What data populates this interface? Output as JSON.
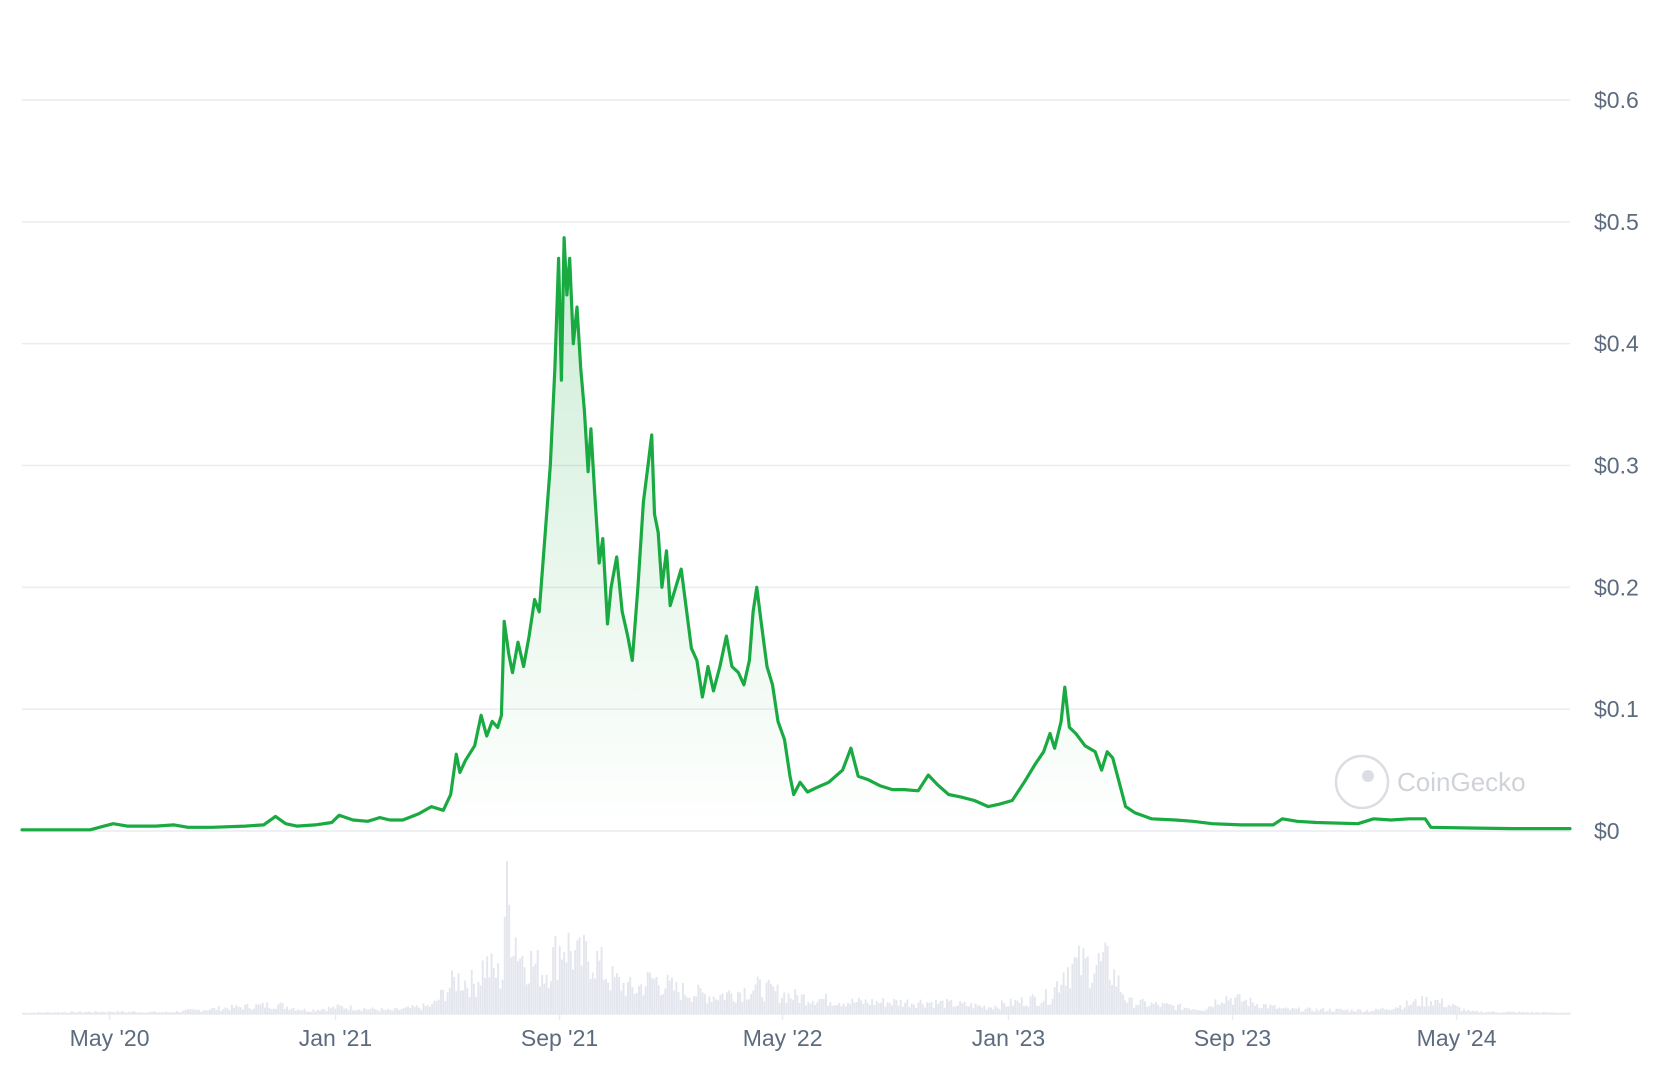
{
  "chart_data": {
    "type": "area",
    "title": "",
    "xlabel": "",
    "ylabel": "",
    "ylim": [
      0,
      0.6
    ],
    "xlim": [
      "2020-01-27",
      "2024-09-01"
    ],
    "y_ticks": [
      "$0.6",
      "$0.5",
      "$0.4",
      "$0.3",
      "$0.2",
      "$0.1",
      "$0"
    ],
    "y_tick_values": [
      0.6,
      0.5,
      0.4,
      0.3,
      0.2,
      0.1,
      0
    ],
    "x_ticks": [
      "May '20",
      "Jan '21",
      "Sep '21",
      "May '22",
      "Jan '23",
      "Sep '23",
      "May '24"
    ],
    "x_tick_dates": [
      "2020-05-01",
      "2021-01-01",
      "2021-09-01",
      "2022-05-01",
      "2023-01-01",
      "2023-09-01",
      "2024-05-01"
    ],
    "grid": true,
    "colors": {
      "line": "#1aaa42",
      "area_top": "#1aaa42",
      "volume": "#e4e6ee",
      "grid": "#e9ecf0",
      "tick_text": "#5c6b7e"
    },
    "series": [
      {
        "values": [
          [
            "2020-01-27",
            0.001
          ],
          [
            "2020-03-15",
            0.001
          ],
          [
            "2020-04-10",
            0.001
          ],
          [
            "2020-04-25",
            0.004
          ],
          [
            "2020-05-05",
            0.006
          ],
          [
            "2020-05-20",
            0.004
          ],
          [
            "2020-06-20",
            0.004
          ],
          [
            "2020-07-10",
            0.005
          ],
          [
            "2020-07-25",
            0.003
          ],
          [
            "2020-08-20",
            0.003
          ],
          [
            "2020-09-25",
            0.004
          ],
          [
            "2020-10-15",
            0.005
          ],
          [
            "2020-10-28",
            0.012
          ],
          [
            "2020-11-08",
            0.006
          ],
          [
            "2020-11-20",
            0.004
          ],
          [
            "2020-12-10",
            0.005
          ],
          [
            "2020-12-28",
            0.007
          ],
          [
            "2021-01-05",
            0.013
          ],
          [
            "2021-01-20",
            0.009
          ],
          [
            "2021-02-05",
            0.008
          ],
          [
            "2021-02-18",
            0.011
          ],
          [
            "2021-03-01",
            0.009
          ],
          [
            "2021-03-15",
            0.009
          ],
          [
            "2021-04-01",
            0.014
          ],
          [
            "2021-04-15",
            0.02
          ],
          [
            "2021-04-28",
            0.017
          ],
          [
            "2021-05-06",
            0.03
          ],
          [
            "2021-05-12",
            0.063
          ],
          [
            "2021-05-16",
            0.048
          ],
          [
            "2021-05-22",
            0.058
          ],
          [
            "2021-06-01",
            0.07
          ],
          [
            "2021-06-08",
            0.095
          ],
          [
            "2021-06-14",
            0.078
          ],
          [
            "2021-06-20",
            0.09
          ],
          [
            "2021-06-26",
            0.085
          ],
          [
            "2021-06-30",
            0.095
          ],
          [
            "2021-07-03",
            0.172
          ],
          [
            "2021-07-08",
            0.145
          ],
          [
            "2021-07-12",
            0.13
          ],
          [
            "2021-07-18",
            0.155
          ],
          [
            "2021-07-24",
            0.135
          ],
          [
            "2021-07-30",
            0.16
          ],
          [
            "2021-08-05",
            0.19
          ],
          [
            "2021-08-10",
            0.18
          ],
          [
            "2021-08-16",
            0.24
          ],
          [
            "2021-08-22",
            0.3
          ],
          [
            "2021-08-27",
            0.38
          ],
          [
            "2021-08-31",
            0.47
          ],
          [
            "2021-09-03",
            0.37
          ],
          [
            "2021-09-06",
            0.487
          ],
          [
            "2021-09-09",
            0.44
          ],
          [
            "2021-09-12",
            0.47
          ],
          [
            "2021-09-16",
            0.4
          ],
          [
            "2021-09-20",
            0.43
          ],
          [
            "2021-09-24",
            0.38
          ],
          [
            "2021-09-28",
            0.345
          ],
          [
            "2021-10-02",
            0.295
          ],
          [
            "2021-10-05",
            0.33
          ],
          [
            "2021-10-09",
            0.28
          ],
          [
            "2021-10-14",
            0.22
          ],
          [
            "2021-10-18",
            0.24
          ],
          [
            "2021-10-23",
            0.17
          ],
          [
            "2021-10-27",
            0.2
          ],
          [
            "2021-11-02",
            0.225
          ],
          [
            "2021-11-08",
            0.18
          ],
          [
            "2021-11-14",
            0.16
          ],
          [
            "2021-11-19",
            0.14
          ],
          [
            "2021-11-25",
            0.2
          ],
          [
            "2021-12-01",
            0.27
          ],
          [
            "2021-12-06",
            0.3
          ],
          [
            "2021-12-10",
            0.325
          ],
          [
            "2021-12-13",
            0.26
          ],
          [
            "2021-12-17",
            0.245
          ],
          [
            "2021-12-21",
            0.2
          ],
          [
            "2021-12-26",
            0.23
          ],
          [
            "2021-12-30",
            0.185
          ],
          [
            "2022-01-05",
            0.2
          ],
          [
            "2022-01-11",
            0.215
          ],
          [
            "2022-01-17",
            0.18
          ],
          [
            "2022-01-22",
            0.15
          ],
          [
            "2022-01-28",
            0.14
          ],
          [
            "2022-02-03",
            0.11
          ],
          [
            "2022-02-09",
            0.135
          ],
          [
            "2022-02-15",
            0.115
          ],
          [
            "2022-02-22",
            0.135
          ],
          [
            "2022-03-01",
            0.16
          ],
          [
            "2022-03-07",
            0.135
          ],
          [
            "2022-03-14",
            0.13
          ],
          [
            "2022-03-20",
            0.12
          ],
          [
            "2022-03-26",
            0.14
          ],
          [
            "2022-03-30",
            0.18
          ],
          [
            "2022-04-03",
            0.2
          ],
          [
            "2022-04-08",
            0.17
          ],
          [
            "2022-04-14",
            0.135
          ],
          [
            "2022-04-20",
            0.12
          ],
          [
            "2022-04-26",
            0.09
          ],
          [
            "2022-05-03",
            0.075
          ],
          [
            "2022-05-09",
            0.045
          ],
          [
            "2022-05-13",
            0.03
          ],
          [
            "2022-05-20",
            0.04
          ],
          [
            "2022-05-28",
            0.032
          ],
          [
            "2022-06-08",
            0.036
          ],
          [
            "2022-06-20",
            0.04
          ],
          [
            "2022-07-05",
            0.05
          ],
          [
            "2022-07-14",
            0.068
          ],
          [
            "2022-07-22",
            0.045
          ],
          [
            "2022-08-02",
            0.042
          ],
          [
            "2022-08-15",
            0.037
          ],
          [
            "2022-08-28",
            0.034
          ],
          [
            "2022-09-10",
            0.034
          ],
          [
            "2022-09-25",
            0.033
          ],
          [
            "2022-10-06",
            0.046
          ],
          [
            "2022-10-16",
            0.038
          ],
          [
            "2022-10-28",
            0.03
          ],
          [
            "2022-11-10",
            0.028
          ],
          [
            "2022-11-25",
            0.025
          ],
          [
            "2022-12-10",
            0.02
          ],
          [
            "2022-12-22",
            0.022
          ],
          [
            "2023-01-05",
            0.025
          ],
          [
            "2023-01-18",
            0.04
          ],
          [
            "2023-01-30",
            0.055
          ],
          [
            "2023-02-08",
            0.065
          ],
          [
            "2023-02-15",
            0.08
          ],
          [
            "2023-02-20",
            0.068
          ],
          [
            "2023-02-27",
            0.09
          ],
          [
            "2023-03-03",
            0.118
          ],
          [
            "2023-03-08",
            0.085
          ],
          [
            "2023-03-15",
            0.08
          ],
          [
            "2023-03-25",
            0.07
          ],
          [
            "2023-04-05",
            0.065
          ],
          [
            "2023-04-12",
            0.05
          ],
          [
            "2023-04-18",
            0.065
          ],
          [
            "2023-04-24",
            0.06
          ],
          [
            "2023-05-01",
            0.04
          ],
          [
            "2023-05-08",
            0.02
          ],
          [
            "2023-05-18",
            0.015
          ],
          [
            "2023-06-05",
            0.01
          ],
          [
            "2023-07-01",
            0.009
          ],
          [
            "2023-07-20",
            0.008
          ],
          [
            "2023-08-10",
            0.006
          ],
          [
            "2023-09-10",
            0.005
          ],
          [
            "2023-10-15",
            0.005
          ],
          [
            "2023-10-25",
            0.01
          ],
          [
            "2023-11-10",
            0.008
          ],
          [
            "2023-12-01",
            0.007
          ],
          [
            "2024-01-15",
            0.006
          ],
          [
            "2024-02-01",
            0.01
          ],
          [
            "2024-02-20",
            0.009
          ],
          [
            "2024-03-10",
            0.01
          ],
          [
            "2024-03-28",
            0.01
          ],
          [
            "2024-04-03",
            0.003
          ],
          [
            "2024-05-15",
            0.0025
          ],
          [
            "2024-07-01",
            0.002
          ],
          [
            "2024-09-01",
            0.002
          ]
        ]
      }
    ],
    "volume": {
      "values": [
        [
          "2020-01-27",
          0.01
        ],
        [
          "2020-05-01",
          0.02
        ],
        [
          "2020-07-01",
          0.015
        ],
        [
          "2020-10-28",
          0.08
        ],
        [
          "2020-12-01",
          0.03
        ],
        [
          "2021-01-05",
          0.06
        ],
        [
          "2021-03-01",
          0.03
        ],
        [
          "2021-04-15",
          0.07
        ],
        [
          "2021-05-12",
          0.3
        ],
        [
          "2021-06-01",
          0.25
        ],
        [
          "2021-06-10",
          0.42
        ],
        [
          "2021-06-30",
          0.3
        ],
        [
          "2021-07-03",
          1.0
        ],
        [
          "2021-07-20",
          0.5
        ],
        [
          "2021-08-15",
          0.35
        ],
        [
          "2021-09-05",
          0.62
        ],
        [
          "2021-09-20",
          0.45
        ],
        [
          "2021-10-05",
          0.5
        ],
        [
          "2021-10-25",
          0.3
        ],
        [
          "2021-11-20",
          0.2
        ],
        [
          "2021-12-10",
          0.3
        ],
        [
          "2022-01-05",
          0.2
        ],
        [
          "2022-02-15",
          0.15
        ],
        [
          "2022-04-03",
          0.22
        ],
        [
          "2022-05-10",
          0.15
        ],
        [
          "2022-07-14",
          0.1
        ],
        [
          "2022-10-06",
          0.1
        ],
        [
          "2022-12-10",
          0.06
        ],
        [
          "2023-02-15",
          0.15
        ],
        [
          "2023-03-03",
          0.4
        ],
        [
          "2023-04-18",
          0.42
        ],
        [
          "2023-05-10",
          0.1
        ],
        [
          "2023-08-01",
          0.04
        ],
        [
          "2023-08-20",
          0.15
        ],
        [
          "2023-10-25",
          0.04
        ],
        [
          "2024-02-01",
          0.03
        ],
        [
          "2024-04-03",
          0.12
        ],
        [
          "2024-05-15",
          0.02
        ],
        [
          "2024-09-01",
          0.01
        ]
      ]
    }
  },
  "watermark": {
    "text": "CoinGecko"
  }
}
